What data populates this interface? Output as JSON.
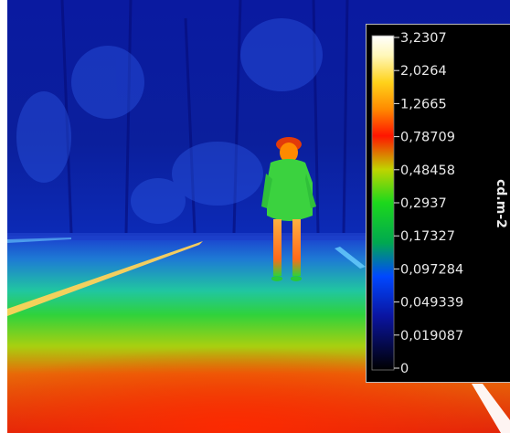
{
  "colorbar": {
    "unit": "cd.m-2",
    "ticks": [
      "3,2307",
      "2,0264",
      "1,2665",
      "0,78709",
      "0,48458",
      "0,2937",
      "0,17327",
      "0,097284",
      "0,049339",
      "0,019087",
      "0"
    ],
    "gradient_colors": [
      "#ffffff",
      "#fff6a6",
      "#ffd21a",
      "#ff8a00",
      "#ff1200",
      "#c8d800",
      "#18d81a",
      "#00a83c",
      "#0050ff",
      "#0a18a8",
      "#000000"
    ]
  },
  "scene": {
    "description_colors": {
      "sky": "#0a1ea8",
      "ground_far": "#1f6ad8",
      "ground_mid": "#1cd060",
      "ground_near": "#e23a0a",
      "person_body": "#3bd23f",
      "person_legs": "#ff8a2a"
    }
  }
}
